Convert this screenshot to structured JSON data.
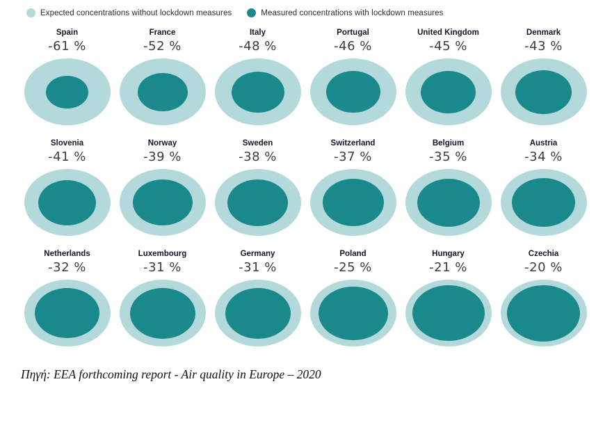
{
  "legend": {
    "items": [
      {
        "label": "Expected concentrations without lockdown measures",
        "color": "#b4d9da"
      },
      {
        "label": "Measured concentrations with lockdown measures",
        "color": "#19898c"
      }
    ]
  },
  "chart_data": {
    "type": "proportional-circles",
    "legend": [
      "Expected concentrations without lockdown measures",
      "Measured concentrations with lockdown measures"
    ],
    "value_unit": "%",
    "series": [
      {
        "country": "Spain",
        "value": -61,
        "label": "-61 %"
      },
      {
        "country": "France",
        "value": -52,
        "label": "-52 %"
      },
      {
        "country": "Italy",
        "value": -48,
        "label": "-48 %"
      },
      {
        "country": "Portugal",
        "value": -46,
        "label": "-46 %"
      },
      {
        "country": "United Kingdom",
        "value": -45,
        "label": "-45 %"
      },
      {
        "country": "Denmark",
        "value": -43,
        "label": "-43 %"
      },
      {
        "country": "Slovenia",
        "value": -41,
        "label": "-41 %"
      },
      {
        "country": "Norway",
        "value": -39,
        "label": "-39 %"
      },
      {
        "country": "Sweden",
        "value": -38,
        "label": "-38 %"
      },
      {
        "country": "Switzerland",
        "value": -37,
        "label": "-37 %"
      },
      {
        "country": "Belgium",
        "value": -35,
        "label": "-35 %"
      },
      {
        "country": "Austria",
        "value": -34,
        "label": "-34 %"
      },
      {
        "country": "Netherlands",
        "value": -32,
        "label": "-32 %"
      },
      {
        "country": "Luxembourg",
        "value": -31,
        "label": "-31 %"
      },
      {
        "country": "Germany",
        "value": -31,
        "label": "-31 %"
      },
      {
        "country": "Poland",
        "value": -25,
        "label": "-25 %"
      },
      {
        "country": "Hungary",
        "value": -21,
        "label": "-21 %"
      },
      {
        "country": "Czechia",
        "value": -20,
        "label": "-20 %"
      }
    ]
  },
  "source": "Πηγή: EEA forthcoming report - Air quality in Europe – 2020"
}
